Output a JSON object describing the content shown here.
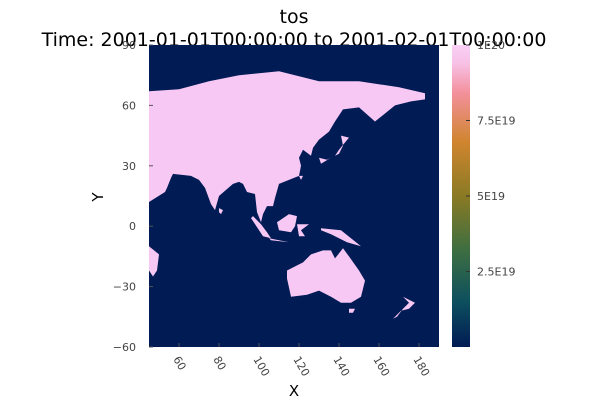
{
  "chart_data": {
    "type": "heatmap",
    "title": "tos",
    "subtitle": "Time: 2001-01-01T00:00:00 to 2001-02-01T00:00:00",
    "xlabel": "X",
    "ylabel": "Y",
    "xlim": [
      45,
      190
    ],
    "ylim": [
      -60,
      90
    ],
    "xticks": [
      60,
      80,
      100,
      120,
      140,
      160,
      180
    ],
    "xtick_labels": [
      "60",
      "80",
      "100",
      "120",
      "140",
      "160",
      "180"
    ],
    "yticks": [
      -60,
      -30,
      0,
      30,
      60,
      90
    ],
    "ytick_labels": [
      "−60",
      "−30",
      "0",
      "30",
      "60",
      "90"
    ],
    "grid": false,
    "values": {
      "ocean": 0,
      "land_fill": 1e+20
    },
    "colorbar": {
      "range": [
        0,
        1e+20
      ],
      "ticks": [
        2.5e+19,
        5e+19,
        7.5e+19,
        1e+20
      ],
      "tick_labels": [
        "2.5E19",
        "5E19",
        "7.5E19",
        "1E20"
      ],
      "colors": [
        "#001b54",
        "#0d4f5e",
        "#3d6e41",
        "#8a7a24",
        "#d0852e",
        "#f3909b",
        "#f7c1e6",
        "#fad0f6"
      ]
    },
    "land_polygons": [
      [
        [
          45,
          67
        ],
        [
          60,
          68
        ],
        [
          75,
          72
        ],
        [
          90,
          75
        ],
        [
          110,
          77
        ],
        [
          130,
          72
        ],
        [
          150,
          72
        ],
        [
          170,
          69
        ],
        [
          183,
          66
        ],
        [
          183,
          63
        ],
        [
          176,
          62
        ],
        [
          168,
          60
        ],
        [
          163,
          56
        ],
        [
          158,
          52
        ],
        [
          150,
          59
        ],
        [
          142,
          58
        ],
        [
          138,
          52
        ],
        [
          135,
          47
        ],
        [
          130,
          43
        ],
        [
          127,
          39
        ],
        [
          126,
          35
        ],
        [
          122,
          38
        ],
        [
          120,
          34
        ],
        [
          121,
          30
        ],
        [
          120,
          25
        ],
        [
          110,
          21
        ],
        [
          108,
          14
        ],
        [
          107,
          10
        ],
        [
          104,
          10
        ],
        [
          102,
          6
        ],
        [
          101,
          2
        ],
        [
          99,
          7
        ],
        [
          98,
          16
        ],
        [
          94,
          17
        ],
        [
          92,
          21
        ],
        [
          90,
          22
        ],
        [
          87,
          21
        ],
        [
          80,
          15
        ],
        [
          78,
          8
        ],
        [
          76,
          11
        ],
        [
          73,
          19
        ],
        [
          70,
          23
        ],
        [
          66,
          25
        ],
        [
          57,
          26
        ],
        [
          56,
          24
        ],
        [
          54,
          19
        ],
        [
          53,
          17
        ],
        [
          45,
          12
        ]
      ],
      [
        [
          130,
          34
        ],
        [
          131,
          31
        ],
        [
          136,
          34
        ],
        [
          140,
          36
        ],
        [
          142,
          40
        ],
        [
          141,
          45
        ],
        [
          145,
          44
        ],
        [
          140,
          38
        ],
        [
          138,
          35
        ],
        [
          134,
          33
        ]
      ],
      [
        [
          120,
          25
        ],
        [
          121,
          23
        ],
        [
          122,
          25
        ]
      ],
      [
        [
          97,
          5
        ],
        [
          101,
          1
        ],
        [
          104,
          -3
        ],
        [
          106,
          -6
        ],
        [
          102,
          -5
        ],
        [
          96,
          4
        ]
      ],
      [
        [
          105,
          -6
        ],
        [
          110,
          -7
        ],
        [
          115,
          -8
        ],
        [
          106,
          -7
        ]
      ],
      [
        [
          109,
          2
        ],
        [
          115,
          6
        ],
        [
          119,
          5
        ],
        [
          118,
          0
        ],
        [
          116,
          -3
        ],
        [
          110,
          -2
        ]
      ],
      [
        [
          119,
          1
        ],
        [
          125,
          1
        ],
        [
          121,
          -2
        ],
        [
          123,
          -5
        ],
        [
          120,
          -5
        ]
      ],
      [
        [
          131,
          -1
        ],
        [
          141,
          -2
        ],
        [
          151,
          -10
        ],
        [
          144,
          -8
        ],
        [
          136,
          -4
        ],
        [
          131,
          -2
        ]
      ],
      [
        [
          114,
          -22
        ],
        [
          122,
          -18
        ],
        [
          126,
          -14
        ],
        [
          132,
          -12
        ],
        [
          136,
          -12
        ],
        [
          138,
          -16
        ],
        [
          142,
          -11
        ],
        [
          145,
          -15
        ],
        [
          150,
          -22
        ],
        [
          153,
          -27
        ],
        [
          151,
          -35
        ],
        [
          146,
          -38
        ],
        [
          141,
          -38
        ],
        [
          136,
          -35
        ],
        [
          130,
          -32
        ],
        [
          124,
          -34
        ],
        [
          116,
          -35
        ],
        [
          114,
          -26
        ]
      ],
      [
        [
          145,
          -41
        ],
        [
          148,
          -41
        ],
        [
          147,
          -43
        ],
        [
          145,
          -43
        ]
      ],
      [
        [
          172,
          -35
        ],
        [
          178,
          -38
        ],
        [
          175,
          -41
        ],
        [
          171,
          -42
        ],
        [
          167,
          -46
        ],
        [
          169,
          -45
        ],
        [
          172,
          -41
        ],
        [
          175,
          -38
        ]
      ],
      [
        [
          45,
          -10
        ],
        [
          50,
          -14
        ],
        [
          49,
          -22
        ],
        [
          47,
          -25
        ],
        [
          45,
          -22
        ]
      ],
      [
        [
          80,
          9
        ],
        [
          82,
          8
        ],
        [
          81,
          6
        ],
        [
          80,
          7
        ]
      ],
      [
        [
          45,
          -15
        ],
        [
          49,
          -15
        ],
        [
          49,
          -20
        ],
        [
          45,
          -20
        ]
      ]
    ]
  }
}
